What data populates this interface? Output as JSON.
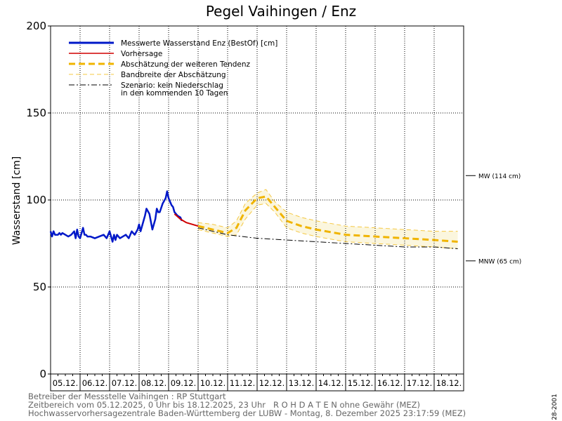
{
  "footer": {
    "operator": "Betreiber der Messstelle Vaihingen : RP Stuttgart",
    "range": "Zeitbereich vom 05.12.2025, 0 Uhr bis 18.12.2025, 23 Uhr",
    "raw_notice": "R O H D A T E N ohne Gewähr (MEZ)",
    "center": "Hochwasservorhersagezentrale Baden-Württemberg der LUBW - Montag, 8. Dezember 2025 23:17:59 (MEZ)"
  },
  "side_code": "28-2001",
  "colors": {
    "measured": "#0018c8",
    "forecast": "#d00000",
    "trend": "#f0b400",
    "band_line": "#f5c842",
    "band_fill": "#fbf6de",
    "scenario": "#000000"
  },
  "chart_data": {
    "type": "line",
    "title": "Pegel Vaihingen / Enz",
    "ylabel": "Wasserstand  [cm]",
    "ylim": [
      0,
      200
    ],
    "yticks": [
      0,
      50,
      100,
      150,
      200
    ],
    "x_unit": "days since 05.12.2025 00:00",
    "xlim": [
      0,
      14
    ],
    "categories": [
      "05.12.",
      "06.12.",
      "07.12.",
      "08.12.",
      "09.12.",
      "10.12.",
      "11.12.",
      "12.12.",
      "13.12.",
      "14.12.",
      "15.12.",
      "16.12.",
      "17.12.",
      "18.12."
    ],
    "grid": true,
    "legend_position": "top-left",
    "legend": [
      {
        "label": "Messwerte Wasserstand Enz   (BestOf)   [cm]",
        "series": "measured"
      },
      {
        "label": "Vorhersage",
        "series": "forecast"
      },
      {
        "label": "Abschätzung der weiteren Tendenz",
        "series": "trend"
      },
      {
        "label": "Bandbreite der Abschätzung",
        "series": "band"
      },
      {
        "label": "Szenario: kein Niederschlag",
        "label2": "in den kommenden 10 Tagen",
        "series": "scenario"
      }
    ],
    "reference_lines": [
      {
        "label": "MW (114 cm)",
        "value": 114
      },
      {
        "label": "MNW (65 cm)",
        "value": 65
      }
    ],
    "series": [
      {
        "id": "measured",
        "name": "Messwerte Wasserstand Enz   (BestOf)   [cm]",
        "x": [
          0,
          0.05,
          0.1,
          0.15,
          0.25,
          0.3,
          0.35,
          0.4,
          0.5,
          0.6,
          0.7,
          0.8,
          0.85,
          0.9,
          0.95,
          1.0,
          1.05,
          1.1,
          1.15,
          1.2,
          1.25,
          1.35,
          1.5,
          1.65,
          1.8,
          1.9,
          2.0,
          2.1,
          2.15,
          2.2,
          2.25,
          2.35,
          2.45,
          2.55,
          2.65,
          2.75,
          2.85,
          2.95,
          3.0,
          3.05,
          3.15,
          3.2,
          3.25,
          3.35,
          3.45,
          3.55,
          3.6,
          3.65,
          3.7,
          3.8,
          3.9,
          3.95,
          4.0,
          4.05,
          4.1,
          4.15,
          4.2,
          4.3,
          4.4,
          4.45
        ],
        "y": [
          82,
          79,
          82,
          80,
          80,
          81,
          80,
          81,
          80,
          79,
          80,
          82,
          78,
          83,
          79,
          78,
          81,
          84,
          80,
          80,
          79,
          79,
          78,
          79,
          80,
          78,
          82,
          76,
          80,
          77,
          80,
          78,
          79,
          80,
          78,
          82,
          80,
          83,
          86,
          82,
          88,
          91,
          95,
          92,
          83,
          89,
          95,
          93,
          93,
          98,
          101,
          105,
          101,
          99,
          97,
          96,
          93,
          91,
          90,
          88
        ]
      },
      {
        "id": "forecast",
        "name": "Vorhersage",
        "x": [
          4.2,
          4.4,
          4.6,
          4.8,
          5.0
        ],
        "y": [
          92,
          89,
          87,
          86,
          85
        ]
      },
      {
        "id": "trend",
        "name": "Abschätzung der weiteren Tendenz",
        "x": [
          5.0,
          5.5,
          6.0,
          6.3,
          6.6,
          7.0,
          7.3,
          7.6,
          8.0,
          8.5,
          9.0,
          10.0,
          11.0,
          12.0,
          13.0,
          13.8
        ],
        "y": [
          85,
          83,
          81,
          84,
          94,
          101,
          102,
          96,
          88,
          85,
          83,
          80,
          79,
          78,
          77,
          76
        ]
      },
      {
        "id": "band_upper",
        "name": "Bandbreite der Abschätzung",
        "x": [
          5.0,
          5.5,
          6.0,
          6.3,
          6.6,
          7.0,
          7.3,
          7.6,
          8.0,
          8.5,
          9.0,
          10.0,
          11.0,
          12.0,
          13.0,
          13.8
        ],
        "y": [
          87,
          86,
          84,
          88,
          98,
          104,
          106,
          99,
          93,
          90,
          88,
          85,
          84,
          83,
          82,
          82
        ]
      },
      {
        "id": "band_lower",
        "name": "Bandbreite der Abschätzung",
        "x": [
          5.0,
          5.5,
          6.0,
          6.3,
          6.6,
          7.0,
          7.3,
          7.6,
          8.0,
          8.5,
          9.0,
          10.0,
          11.0,
          12.0,
          13.0,
          13.8
        ],
        "y": [
          83,
          81,
          79,
          80,
          89,
          97,
          98,
          93,
          84,
          81,
          79,
          76,
          75,
          74,
          73,
          72
        ]
      },
      {
        "id": "scenario",
        "name": "Szenario: kein Niederschlag",
        "x": [
          5.0,
          6.0,
          7.0,
          8.0,
          9.0,
          10.0,
          11.0,
          12.0,
          13.0,
          13.8
        ],
        "y": [
          84,
          80,
          78,
          77,
          76,
          75,
          74,
          73,
          73,
          72
        ]
      }
    ]
  }
}
